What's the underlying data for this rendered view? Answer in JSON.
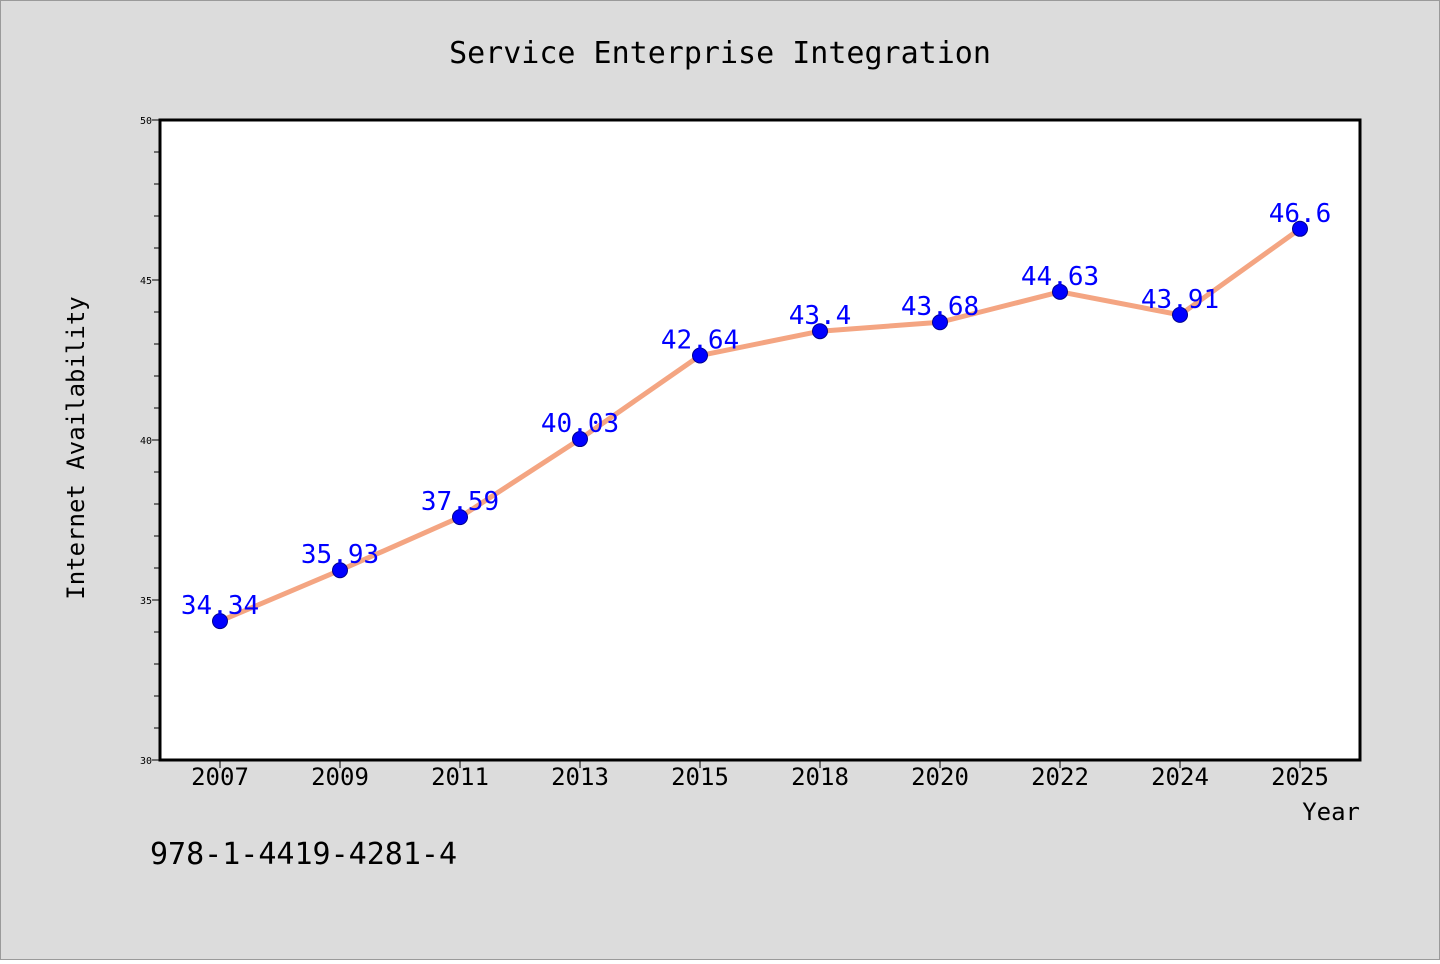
{
  "chart_data": {
    "type": "line",
    "title": "Service Enterprise Integration",
    "xlabel": "Year",
    "ylabel": "Internet Availability",
    "categories": [
      "2007",
      "2009",
      "2011",
      "2013",
      "2015",
      "2018",
      "2020",
      "2022",
      "2024",
      "2025"
    ],
    "series": [
      {
        "values": [
          34.34,
          35.93,
          37.59,
          40.03,
          42.64,
          43.4,
          43.68,
          44.63,
          43.91,
          46.6
        ],
        "data_labels": [
          "34.34",
          "35.93",
          "37.59",
          "40.03",
          "42.64",
          "43.4",
          "43.68",
          "44.63",
          "43.91",
          "46.6"
        ],
        "line_color": "#f4a582",
        "marker_color": "#0000ff"
      }
    ],
    "ylim": [
      30,
      50
    ],
    "yticks": [
      30,
      35,
      40,
      45,
      50
    ],
    "ytick_labels": [
      "30",
      "35",
      "40",
      "45",
      "50"
    ],
    "grid": false,
    "legend": "none"
  },
  "footnote": "978-1-4419-4281-4",
  "colors": {
    "figure_background": "#dcdcdc",
    "plot_background": "#ffffff",
    "axis": "#000000",
    "data_label": "#0000ff"
  }
}
